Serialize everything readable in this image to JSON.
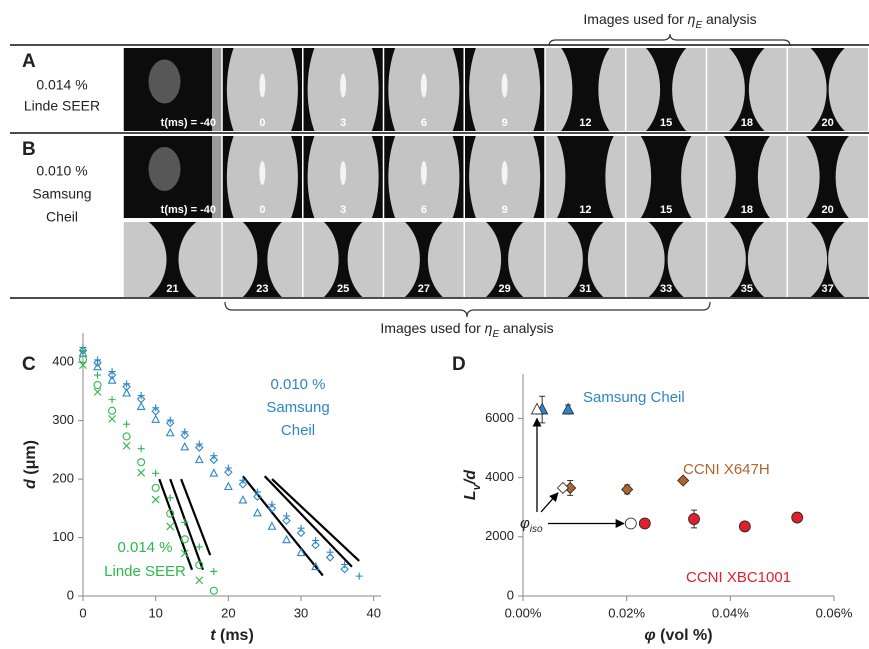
{
  "figure": {
    "rows": [
      {
        "letter": "A",
        "label": [
          "0.014 %",
          "Linde SEER"
        ],
        "frames": [
          "t(ms) = -40",
          "0",
          "3",
          "6",
          "9",
          "12",
          "15",
          "18",
          "20"
        ]
      },
      {
        "letter": "B",
        "label": [
          "0.010 %",
          "Samsung",
          "Cheil"
        ],
        "frames": [
          "t(ms) = -40",
          "0",
          "3",
          "6",
          "9",
          "12",
          "15",
          "18",
          "20"
        ],
        "frames_2": [
          "21",
          "23",
          "25",
          "27",
          "29",
          "31",
          "33",
          "35",
          "37"
        ]
      }
    ],
    "bracket_top": {
      "prefix": "Images used for ",
      "symbol": "η",
      "sub": "E",
      "suffix": " analysis"
    },
    "bracket_bottom": {
      "prefix": "Images used for ",
      "symbol": "η",
      "sub": "E",
      "suffix": " analysis"
    }
  },
  "chart_data": [
    {
      "type": "scatter",
      "letter": "C",
      "xlabel_symbol": "t",
      "xlabel_unit": " (ms)",
      "ylabel_symbol": "d",
      "ylabel_unit": " (μm)",
      "xlim": [
        0,
        41
      ],
      "xticks": [
        0,
        10,
        20,
        30,
        40
      ],
      "ylim": [
        0,
        450
      ],
      "yticks": [
        0,
        100,
        200,
        300,
        400
      ],
      "annotations": [
        {
          "lines": [
            "0.014 %",
            "Linde SEER"
          ],
          "color": "#2eb84b"
        },
        {
          "lines": [
            "0.010 %",
            "Samsung",
            "Cheil"
          ],
          "color": "#2e86c8"
        }
      ],
      "series": [
        {
          "color": "#2e86c8",
          "marker": "plus",
          "x": [
            0,
            2,
            4,
            6,
            8,
            10,
            12,
            14,
            16,
            18,
            20,
            22,
            24,
            26,
            28,
            30,
            32,
            34,
            36,
            38
          ],
          "values": [
            425,
            404,
            384,
            363,
            343,
            322,
            301,
            281,
            260,
            240,
            219,
            198,
            178,
            157,
            137,
            116,
            95,
            75,
            54,
            34
          ]
        },
        {
          "color": "#2e86c8",
          "marker": "diamond",
          "x": [
            0,
            2,
            4,
            6,
            8,
            10,
            12,
            14,
            16,
            18,
            20,
            22,
            24,
            26,
            28,
            30,
            32,
            34,
            36
          ],
          "values": [
            420,
            399,
            378,
            358,
            337,
            316,
            296,
            275,
            254,
            233,
            212,
            191,
            170,
            150,
            129,
            108,
            87,
            66,
            46
          ]
        },
        {
          "color": "#2e86c8",
          "marker": "triangle",
          "x": [
            0,
            2,
            4,
            6,
            8,
            10,
            12,
            14,
            16,
            18,
            20,
            22,
            24,
            26,
            28,
            30,
            32
          ],
          "values": [
            415,
            392,
            369,
            347,
            324,
            302,
            279,
            255,
            233,
            210,
            187,
            164,
            142,
            119,
            96,
            74,
            50
          ]
        },
        {
          "color": "#2eb84b",
          "marker": "circle",
          "x": [
            0,
            2,
            4,
            6,
            8,
            10,
            12,
            14,
            16,
            18
          ],
          "values": [
            405,
            361,
            317,
            273,
            229,
            185,
            141,
            97,
            53,
            9
          ]
        },
        {
          "color": "#2eb84b",
          "marker": "x",
          "x": [
            0,
            2,
            4,
            6,
            8,
            10,
            12,
            14,
            16
          ],
          "values": [
            395,
            349,
            303,
            257,
            211,
            165,
            119,
            73,
            27
          ]
        },
        {
          "color": "#2eb84b",
          "marker": "plus",
          "x": [
            0,
            2,
            4,
            6,
            8,
            10,
            12,
            14,
            16,
            18
          ],
          "values": [
            420,
            378,
            336,
            294,
            252,
            210,
            168,
            126,
            84,
            42
          ]
        }
      ],
      "fit_color": "#000000",
      "fit_lines": [
        {
          "x": [
            10.5,
            15
          ],
          "values": [
            200,
            45
          ]
        },
        {
          "x": [
            12,
            16.5
          ],
          "values": [
            200,
            45
          ]
        },
        {
          "x": [
            13.5,
            17.5
          ],
          "values": [
            200,
            70
          ]
        },
        {
          "x": [
            22,
            33
          ],
          "values": [
            205,
            35
          ]
        },
        {
          "x": [
            25,
            37
          ],
          "values": [
            205,
            50
          ]
        },
        {
          "x": [
            26,
            38
          ],
          "values": [
            200,
            60
          ]
        }
      ]
    },
    {
      "type": "scatter",
      "letter": "D",
      "xlabel_symbol": "φ",
      "xlabel_unit": " (vol %)",
      "ylabel_main": "L",
      "ylabel_sub": "v",
      "ylabel_tail": "/d",
      "xlim": [
        0,
        0.06
      ],
      "xticks": [
        {
          "value": 0,
          "label": "0.00%"
        },
        {
          "value": 0.02,
          "label": "0.02%"
        },
        {
          "value": 0.04,
          "label": "0.04%"
        },
        {
          "value": 0.06,
          "label": "0.06%"
        }
      ],
      "ylim": [
        0,
        7500
      ],
      "yticks": [
        0,
        2000,
        4000,
        6000
      ],
      "iso_symbol": "φ",
      "iso_sub": "iso",
      "series": [
        {
          "name": "Samsung Cheil",
          "color": "#2e86c8",
          "marker": "triangle",
          "x": [
            0.0037,
            0.0087
          ],
          "values": [
            6300,
            6300
          ],
          "errors": [
            450,
            150
          ],
          "iso_x": 0.0027,
          "iso_value": 6300
        },
        {
          "name": "CCNI X647H",
          "color": "#b0652a",
          "marker": "diamond",
          "x": [
            0.0091,
            0.0201,
            0.0309
          ],
          "values": [
            3650,
            3600,
            3900
          ],
          "errors": [
            250,
            150,
            null
          ],
          "iso_x": 0.0077,
          "iso_value": 3650
        },
        {
          "name": "CCNI XBC1001",
          "color": "#e0202a",
          "marker": "circle",
          "x": [
            0.0235,
            0.033,
            0.0428,
            0.0529
          ],
          "values": [
            2450,
            2600,
            2350,
            2650
          ],
          "errors": [
            null,
            300,
            null,
            null
          ],
          "iso_x": 0.0208,
          "iso_value": 2450
        }
      ]
    }
  ]
}
